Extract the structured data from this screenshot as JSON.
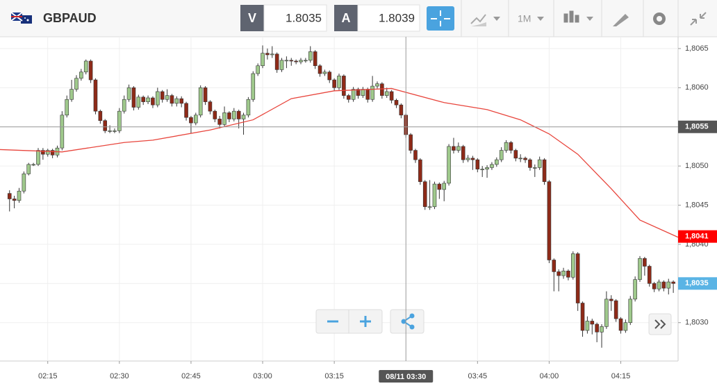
{
  "toolbar": {
    "symbol": "GBPAUD",
    "bid_label": "V",
    "bid": 1.8035,
    "ask_label": "A",
    "ask": 1.8039,
    "timeframe": "1M"
  },
  "chart_data": {
    "type": "candlestick",
    "x": [
      "02:07",
      "02:08",
      "02:09",
      "02:10",
      "02:11",
      "02:12",
      "02:13",
      "02:14",
      "02:15",
      "02:16",
      "02:17",
      "02:18",
      "02:19",
      "02:20",
      "02:21",
      "02:22",
      "02:23",
      "02:24",
      "02:25",
      "02:26",
      "02:27",
      "02:28",
      "02:29",
      "02:30",
      "02:31",
      "02:32",
      "02:33",
      "02:34",
      "02:35",
      "02:36",
      "02:37",
      "02:38",
      "02:39",
      "02:40",
      "02:41",
      "02:42",
      "02:43",
      "02:44",
      "02:45",
      "02:46",
      "02:47",
      "02:48",
      "02:49",
      "02:50",
      "02:51",
      "02:52",
      "02:53",
      "02:54",
      "02:55",
      "02:56",
      "02:57",
      "02:58",
      "02:59",
      "03:00",
      "03:01",
      "03:02",
      "03:03",
      "03:04",
      "03:05",
      "03:06",
      "03:07",
      "03:08",
      "03:09",
      "03:10",
      "03:11",
      "03:12",
      "03:13",
      "03:14",
      "03:15",
      "03:16",
      "03:17",
      "03:18",
      "03:19",
      "03:20",
      "03:21",
      "03:22",
      "03:23",
      "03:24",
      "03:25",
      "03:26",
      "03:27",
      "03:28",
      "03:29",
      "03:30",
      "03:31",
      "03:32",
      "03:33",
      "03:34",
      "03:35",
      "03:36",
      "03:37",
      "03:38",
      "03:39",
      "03:40",
      "03:41",
      "03:42",
      "03:43",
      "03:44",
      "03:45",
      "03:46",
      "03:47",
      "03:48",
      "03:49",
      "03:50",
      "03:51",
      "03:52",
      "03:53",
      "03:54",
      "03:55",
      "03:56",
      "03:57",
      "03:58",
      "03:59",
      "04:00",
      "04:01",
      "04:02",
      "04:03",
      "04:04",
      "04:05",
      "04:06",
      "04:07",
      "04:08",
      "04:09",
      "04:10",
      "04:11",
      "04:12",
      "04:13",
      "04:14",
      "04:15",
      "04:16",
      "04:17",
      "04:18",
      "04:19",
      "04:20",
      "04:21",
      "04:22",
      "04:23",
      "04:24",
      "04:25",
      "04:26"
    ],
    "ohlc": [
      [
        1.80465,
        1.80469,
        1.80442,
        1.80458
      ],
      [
        1.80458,
        1.80462,
        1.80446,
        1.80456
      ],
      [
        1.80456,
        1.80472,
        1.80453,
        1.80468
      ],
      [
        1.80468,
        1.80493,
        1.80465,
        1.8049
      ],
      [
        1.8049,
        1.80504,
        1.80488,
        1.80502
      ],
      [
        1.80502,
        1.80504,
        1.805,
        1.80502
      ],
      [
        1.80502,
        1.80523,
        1.805,
        1.8052
      ],
      [
        1.8052,
        1.80523,
        1.80508,
        1.80515
      ],
      [
        1.80515,
        1.80522,
        1.80512,
        1.8052
      ],
      [
        1.8052,
        1.80522,
        1.8051,
        1.80514
      ],
      [
        1.80514,
        1.80526,
        1.80511,
        1.80523
      ],
      [
        1.80523,
        1.8057,
        1.8052,
        1.80565
      ],
      [
        1.80565,
        1.8059,
        1.80562,
        1.80585
      ],
      [
        1.80585,
        1.8061,
        1.80582,
        1.80598
      ],
      [
        1.80598,
        1.80616,
        1.80595,
        1.80612
      ],
      [
        1.80612,
        1.80624,
        1.80609,
        1.8062
      ],
      [
        1.8062,
        1.80636,
        1.80617,
        1.80634
      ],
      [
        1.80634,
        1.80636,
        1.80606,
        1.8061
      ],
      [
        1.8061,
        1.80612,
        1.80566,
        1.8057
      ],
      [
        1.8057,
        1.80572,
        1.80554,
        1.80558
      ],
      [
        1.80558,
        1.8056,
        1.80542,
        1.80545
      ],
      [
        1.80545,
        1.80552,
        1.80542,
        1.80545
      ],
      [
        1.80545,
        1.80548,
        1.80542,
        1.80545
      ],
      [
        1.80545,
        1.80574,
        1.80542,
        1.8057
      ],
      [
        1.8057,
        1.8059,
        1.80567,
        1.80585
      ],
      [
        1.80585,
        1.80604,
        1.80582,
        1.806
      ],
      [
        1.806,
        1.80602,
        1.80571,
        1.80575
      ],
      [
        1.80575,
        1.80591,
        1.80572,
        1.80588
      ],
      [
        1.80588,
        1.8059,
        1.80578,
        1.80582
      ],
      [
        1.80582,
        1.8059,
        1.80579,
        1.80587
      ],
      [
        1.80587,
        1.80589,
        1.80574,
        1.80578
      ],
      [
        1.80578,
        1.806,
        1.80575,
        1.80595
      ],
      [
        1.80595,
        1.80597,
        1.80581,
        1.80585
      ],
      [
        1.80585,
        1.80598,
        1.80582,
        1.8059
      ],
      [
        1.8059,
        1.80592,
        1.80576,
        1.8058
      ],
      [
        1.8058,
        1.80589,
        1.80576,
        1.80586
      ],
      [
        1.80586,
        1.80589,
        1.80575,
        1.8058
      ],
      [
        1.8058,
        1.80582,
        1.80558,
        1.80562
      ],
      [
        1.80562,
        1.80564,
        1.80542,
        1.80555
      ],
      [
        1.80555,
        1.80568,
        1.80552,
        1.80565
      ],
      [
        1.80565,
        1.80603,
        1.80562,
        1.806
      ],
      [
        1.806,
        1.80602,
        1.80578,
        1.80582
      ],
      [
        1.80582,
        1.80584,
        1.80566,
        1.8057
      ],
      [
        1.8057,
        1.80572,
        1.80556,
        1.8056
      ],
      [
        1.8056,
        1.80564,
        1.80548,
        1.80553
      ],
      [
        1.80553,
        1.80576,
        1.8055,
        1.80568
      ],
      [
        1.80568,
        1.8057,
        1.80556,
        1.8056
      ],
      [
        1.8056,
        1.80574,
        1.80557,
        1.8057
      ],
      [
        1.8057,
        1.80572,
        1.80548,
        1.8056
      ],
      [
        1.8056,
        1.80568,
        1.8054,
        1.80565
      ],
      [
        1.80565,
        1.80588,
        1.80562,
        1.80585
      ],
      [
        1.80585,
        1.80621,
        1.80582,
        1.80618
      ],
      [
        1.80618,
        1.80631,
        1.80615,
        1.80628
      ],
      [
        1.80628,
        1.80654,
        1.80625,
        1.80644
      ],
      [
        1.80644,
        1.8065,
        1.80636,
        1.80642
      ],
      [
        1.80642,
        1.80653,
        1.80638,
        1.80643
      ],
      [
        1.80643,
        1.80645,
        1.80619,
        1.80623
      ],
      [
        1.80623,
        1.80638,
        1.8062,
        1.80635
      ],
      [
        1.80635,
        1.8064,
        1.80625,
        1.80635
      ],
      [
        1.80635,
        1.80638,
        1.80628,
        1.80634
      ],
      [
        1.80634,
        1.80636,
        1.8063,
        1.80633
      ],
      [
        1.80633,
        1.80638,
        1.8063,
        1.80635
      ],
      [
        1.80635,
        1.80638,
        1.80632,
        1.80635
      ],
      [
        1.80635,
        1.80653,
        1.80632,
        1.80646
      ],
      [
        1.80646,
        1.80648,
        1.80624,
        1.80628
      ],
      [
        1.80628,
        1.8063,
        1.80614,
        1.80618
      ],
      [
        1.80618,
        1.80623,
        1.80615,
        1.8062
      ],
      [
        1.8062,
        1.80622,
        1.80606,
        1.8061
      ],
      [
        1.8061,
        1.80612,
        1.80596,
        1.806
      ],
      [
        1.806,
        1.80618,
        1.80597,
        1.80615
      ],
      [
        1.80615,
        1.80617,
        1.80586,
        1.8059
      ],
      [
        1.8059,
        1.80592,
        1.80581,
        1.80585
      ],
      [
        1.80585,
        1.80601,
        1.80582,
        1.80598
      ],
      [
        1.80598,
        1.806,
        1.80586,
        1.8059
      ],
      [
        1.8059,
        1.80601,
        1.80587,
        1.80598
      ],
      [
        1.80598,
        1.806,
        1.80581,
        1.80585
      ],
      [
        1.80585,
        1.80615,
        1.80582,
        1.80602
      ],
      [
        1.80602,
        1.80608,
        1.80599,
        1.80605
      ],
      [
        1.80605,
        1.80607,
        1.80586,
        1.8059
      ],
      [
        1.8059,
        1.806,
        1.80587,
        1.80595
      ],
      [
        1.80595,
        1.80597,
        1.8058,
        1.80584
      ],
      [
        1.80584,
        1.80586,
        1.80574,
        1.80578
      ],
      [
        1.80578,
        1.8058,
        1.80561,
        1.80565
      ],
      [
        1.80565,
        1.80567,
        1.80536,
        1.8054
      ],
      [
        1.8054,
        1.80542,
        1.80516,
        1.8052
      ],
      [
        1.8052,
        1.80522,
        1.80504,
        1.80508
      ],
      [
        1.80508,
        1.8051,
        1.80476,
        1.8048
      ],
      [
        1.8048,
        1.80482,
        1.80444,
        1.80448
      ],
      [
        1.80448,
        1.80482,
        1.80444,
        1.80448
      ],
      [
        1.80448,
        1.8048,
        1.80445,
        1.80477
      ],
      [
        1.80477,
        1.80479,
        1.80458,
        1.8047
      ],
      [
        1.8047,
        1.80481,
        1.80455,
        1.80478
      ],
      [
        1.80478,
        1.80528,
        1.80475,
        1.80525
      ],
      [
        1.80525,
        1.80536,
        1.80516,
        1.8052
      ],
      [
        1.8052,
        1.8053,
        1.80517,
        1.80525
      ],
      [
        1.80525,
        1.80527,
        1.80504,
        1.80508
      ],
      [
        1.80508,
        1.80514,
        1.80505,
        1.8051
      ],
      [
        1.8051,
        1.80513,
        1.80495,
        1.80508
      ],
      [
        1.80508,
        1.8051,
        1.80492,
        1.80496
      ],
      [
        1.80496,
        1.805,
        1.80486,
        1.80496
      ],
      [
        1.80496,
        1.80501,
        1.80485,
        1.80498
      ],
      [
        1.80498,
        1.80505,
        1.80495,
        1.80502
      ],
      [
        1.80502,
        1.80511,
        1.80499,
        1.80508
      ],
      [
        1.80508,
        1.80524,
        1.80505,
        1.8052
      ],
      [
        1.8052,
        1.80533,
        1.80517,
        1.8053
      ],
      [
        1.8053,
        1.80532,
        1.80516,
        1.8052
      ],
      [
        1.8052,
        1.80522,
        1.80506,
        1.8051
      ],
      [
        1.8051,
        1.80515,
        1.80505,
        1.8051
      ],
      [
        1.8051,
        1.80512,
        1.80504,
        1.80508
      ],
      [
        1.80508,
        1.8051,
        1.80494,
        1.80498
      ],
      [
        1.80498,
        1.80502,
        1.80486,
        1.80498
      ],
      [
        1.80498,
        1.80512,
        1.80495,
        1.80508
      ],
      [
        1.80508,
        1.8051,
        1.80476,
        1.8048
      ],
      [
        1.8048,
        1.80482,
        1.80376,
        1.8038
      ],
      [
        1.8038,
        1.80382,
        1.8034,
        1.80365
      ],
      [
        1.80365,
        1.80368,
        1.8034,
        1.8036
      ],
      [
        1.8036,
        1.8037,
        1.80356,
        1.80366
      ],
      [
        1.80366,
        1.80368,
        1.80354,
        1.80358
      ],
      [
        1.80358,
        1.80391,
        1.80355,
        1.80388
      ],
      [
        1.80388,
        1.8039,
        1.80315,
        1.80325
      ],
      [
        1.80325,
        1.80327,
        1.80282,
        1.8029
      ],
      [
        1.8029,
        1.80308,
        1.80286,
        1.80302
      ],
      [
        1.80302,
        1.80305,
        1.80285,
        1.80298
      ],
      [
        1.80298,
        1.803,
        1.80275,
        1.80288
      ],
      [
        1.80288,
        1.80298,
        1.80268,
        1.80295
      ],
      [
        1.80295,
        1.8034,
        1.80292,
        1.8033
      ],
      [
        1.8033,
        1.80335,
        1.80315,
        1.80328
      ],
      [
        1.80328,
        1.8033,
        1.80301,
        1.80305
      ],
      [
        1.80305,
        1.80307,
        1.80286,
        1.8029
      ],
      [
        1.8029,
        1.80304,
        1.80287,
        1.803
      ],
      [
        1.803,
        1.80334,
        1.80297,
        1.8033
      ],
      [
        1.8033,
        1.80359,
        1.80327,
        1.80355
      ],
      [
        1.80355,
        1.80385,
        1.80352,
        1.80382
      ],
      [
        1.80382,
        1.80384,
        1.8036,
        1.80372
      ],
      [
        1.80372,
        1.80374,
        1.80346,
        1.8035
      ],
      [
        1.8035,
        1.80352,
        1.80339,
        1.80343
      ],
      [
        1.80343,
        1.80355,
        1.8034,
        1.80352
      ],
      [
        1.80352,
        1.80354,
        1.8034,
        1.80344
      ],
      [
        1.80344,
        1.80356,
        1.80336,
        1.80352
      ],
      [
        1.80352,
        1.80354,
        1.80338,
        1.8035
      ]
    ],
    "up_color": "#9fc98c",
    "down_color": "#8e2a18",
    "xlim": [
      "02:05",
      "04:27"
    ],
    "xticks": [
      "02:15",
      "02:30",
      "02:45",
      "03:00",
      "03:15",
      "03:45",
      "04:00",
      "04:15"
    ],
    "ylim": [
      1.80251,
      1.80665
    ],
    "yticks": [
      {
        "value": 1.803,
        "label": "1,8030"
      },
      {
        "value": 1.8035,
        "label": "1,8035"
      },
      {
        "value": 1.804,
        "label": "1,8040"
      },
      {
        "value": 1.8045,
        "label": "1,8045"
      },
      {
        "value": 1.805,
        "label": "1,8050"
      },
      {
        "value": 1.8055,
        "label": "1,8055"
      },
      {
        "value": 1.806,
        "label": "1,8060"
      },
      {
        "value": 1.8065,
        "label": "1,8065"
      }
    ],
    "grid": true,
    "moving_average": {
      "x": [
        "02:05",
        "02:18",
        "02:31",
        "02:37",
        "02:49",
        "02:58",
        "03:06",
        "03:15",
        "03:27",
        "03:38",
        "03:47",
        "03:54",
        "04:00",
        "04:06",
        "04:13",
        "04:19",
        "04:27"
      ],
      "values": [
        1.80521,
        1.80518,
        1.8053,
        1.80533,
        1.80546,
        1.80559,
        1.80586,
        1.80596,
        1.80599,
        1.80581,
        1.80572,
        1.80559,
        1.80541,
        1.80515,
        1.80471,
        1.80431,
        1.80409
      ],
      "color": "#e8453c",
      "last": {
        "value": 1.8041,
        "label": "1,8041"
      }
    },
    "crosshair": {
      "x": "03:30",
      "x_label": "08/11 03:30",
      "y": {
        "value": 1.8055,
        "label": "1,8055"
      }
    },
    "last_price": {
      "value": 1.8035,
      "label": "1,8035",
      "color": "#5ab4e5"
    }
  }
}
